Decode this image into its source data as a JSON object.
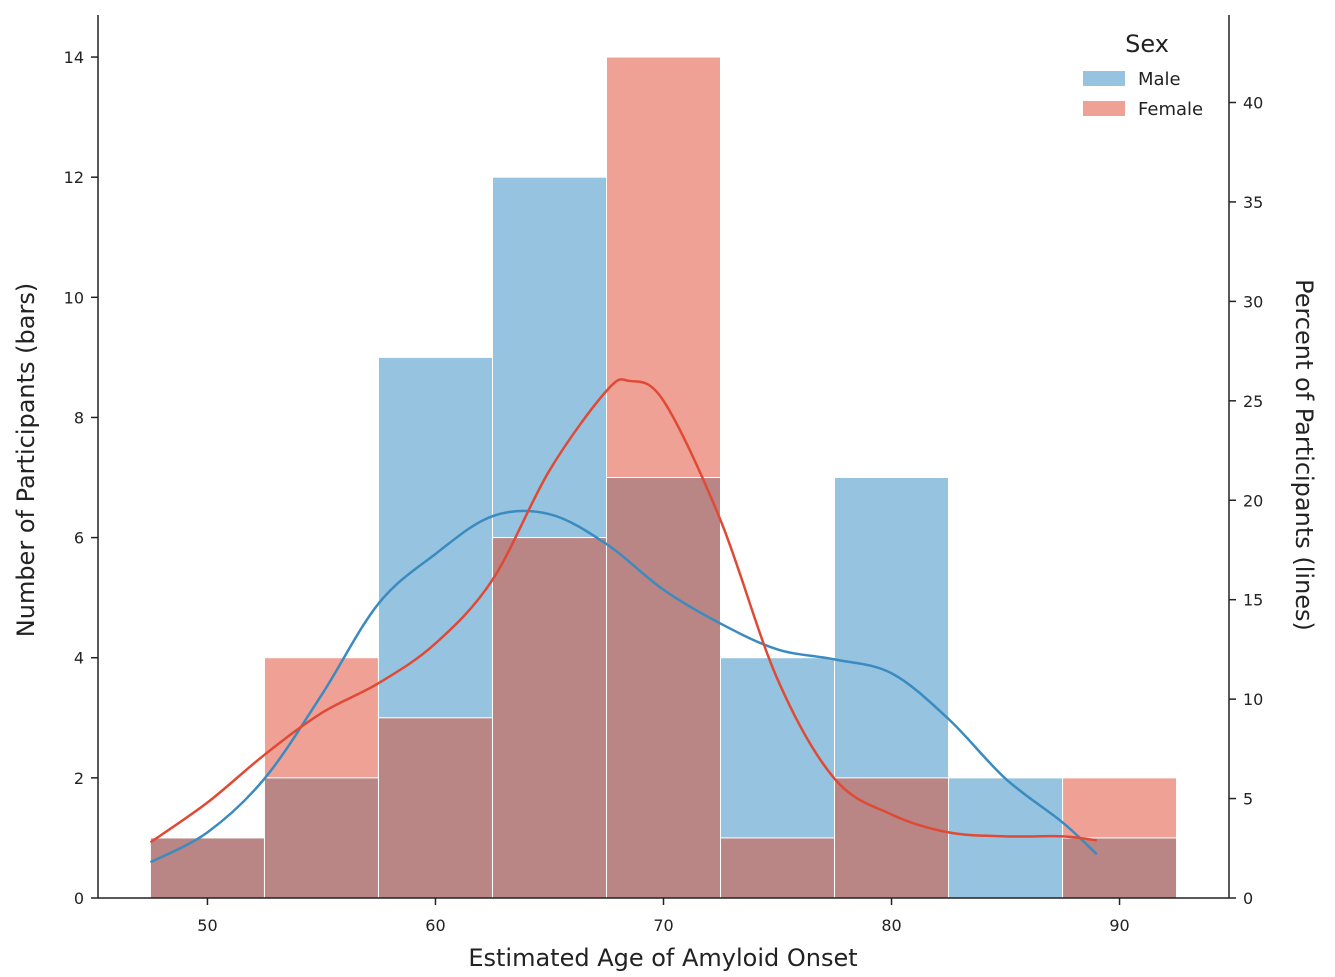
{
  "chart_data": {
    "type": "bar",
    "bins": [
      [
        47.5,
        52.5
      ],
      [
        52.5,
        57.5
      ],
      [
        57.5,
        62.5
      ],
      [
        62.5,
        67.5
      ],
      [
        67.5,
        72.5
      ],
      [
        72.5,
        77.5
      ],
      [
        77.5,
        82.5
      ],
      [
        82.5,
        87.5
      ],
      [
        87.5,
        92.5
      ]
    ],
    "series": [
      {
        "name": "Male",
        "color": "#6aaad2",
        "counts": [
          1,
          2,
          9,
          12,
          7,
          4,
          7,
          2,
          1
        ],
        "kde_x": [
          47.5,
          50,
          52.5,
          55,
          57.5,
          60,
          62.5,
          65,
          67.5,
          70,
          72.5,
          75,
          77.5,
          80,
          82.5,
          85,
          87.5,
          89
        ],
        "kde_percent": [
          1.8,
          3.3,
          6.0,
          10.2,
          14.8,
          17.3,
          19.2,
          19.3,
          17.8,
          15.5,
          13.8,
          12.5,
          12.0,
          11.3,
          9.0,
          6.0,
          3.8,
          2.2
        ]
      },
      {
        "name": "Female",
        "color": "#e8796a",
        "counts": [
          1,
          4,
          3,
          6,
          14,
          1,
          2,
          0,
          2
        ],
        "kde_x": [
          47.5,
          50,
          52.5,
          55,
          57.5,
          60,
          62.5,
          65,
          67.5,
          68.5,
          70,
          72.5,
          75,
          77.5,
          80,
          82.5,
          85,
          87.5,
          89
        ],
        "kde_percent": [
          2.8,
          4.8,
          7.2,
          9.3,
          10.8,
          12.8,
          16.0,
          21.5,
          25.5,
          26.0,
          25.0,
          19.0,
          11.0,
          6.0,
          4.2,
          3.3,
          3.1,
          3.1,
          2.9
        ]
      }
    ],
    "xlabel": "Estimated Age of Amyloid Onset",
    "ylabel": "Number of Participants (bars)",
    "y2label": "Percent of Participants (lines)",
    "xticks": [
      50,
      60,
      70,
      80,
      90
    ],
    "yticks": [
      0,
      2,
      4,
      6,
      8,
      10,
      12,
      14
    ],
    "y2ticks": [
      0,
      5,
      10,
      15,
      20,
      25,
      30,
      35,
      40
    ],
    "xlim": [
      45.2,
      94.8
    ],
    "ylim": [
      0,
      14.7
    ],
    "y2lim": [
      0,
      44.4
    ],
    "legend": {
      "title": "Sex",
      "placement": "top-right",
      "entries": [
        "Male",
        "Female"
      ]
    },
    "overlap_color": "#b98585",
    "grid": false
  }
}
